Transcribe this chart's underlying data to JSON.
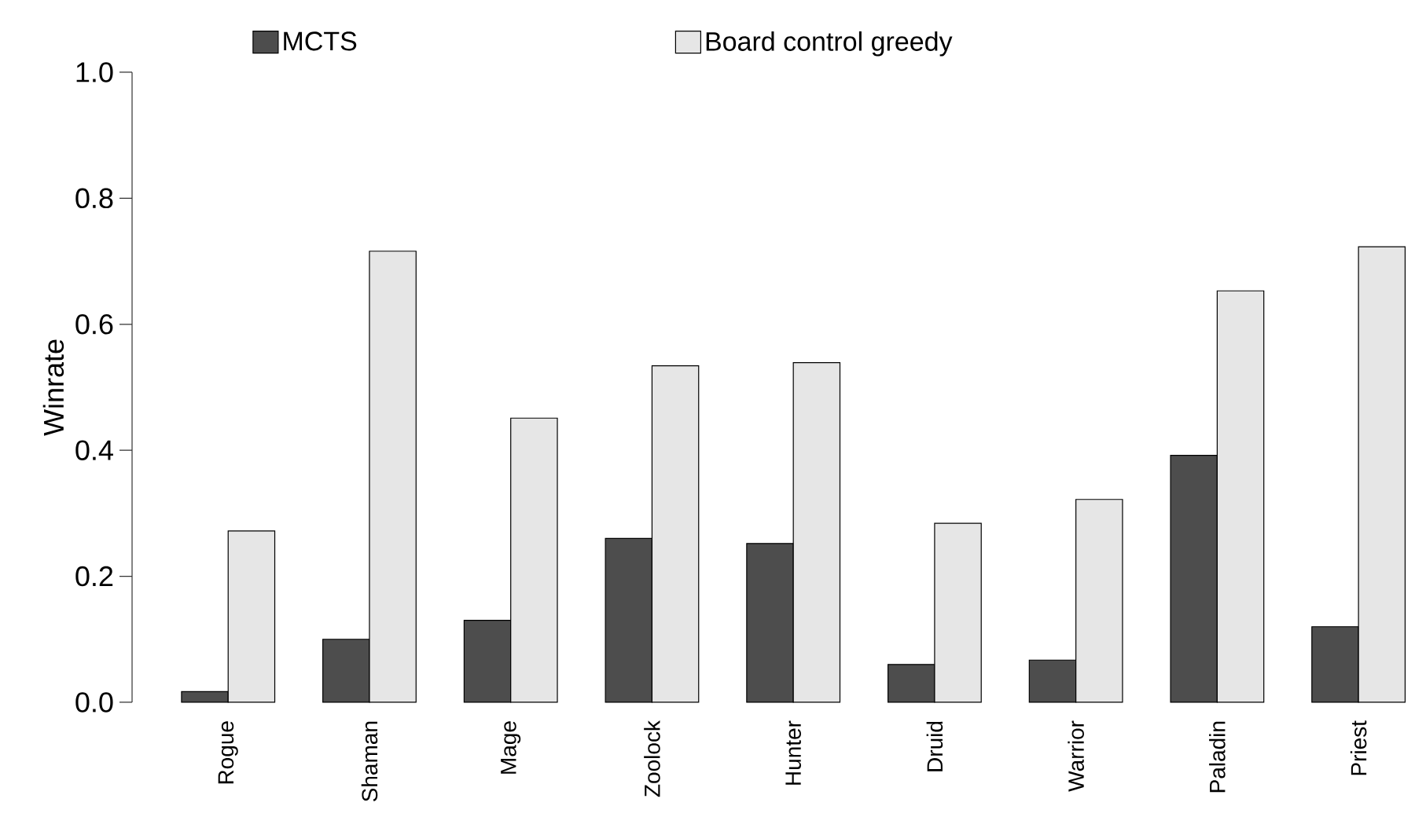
{
  "chart_data": {
    "type": "bar",
    "ylabel": "Winrate",
    "categories": [
      "Rogue",
      "Shaman",
      "Mage",
      "Zoolock",
      "Hunter",
      "Druid",
      "Warrior",
      "Paladin",
      "Priest"
    ],
    "series": [
      {
        "name": "MCTS",
        "color": "#4d4d4d",
        "values": [
          0.017,
          0.1,
          0.13,
          0.26,
          0.252,
          0.06,
          0.067,
          0.392,
          0.12
        ]
      },
      {
        "name": "Board control greedy",
        "color": "#e6e6e6",
        "values": [
          0.272,
          0.716,
          0.451,
          0.534,
          0.539,
          0.284,
          0.322,
          0.653,
          0.723
        ]
      }
    ],
    "ylim": [
      0,
      1
    ],
    "yticks": [
      {
        "value": 0,
        "label": "0.0"
      },
      {
        "value": 0.2,
        "label": "0.2"
      },
      {
        "value": 0.4,
        "label": "0.4"
      },
      {
        "value": 0.6,
        "label": "0.6"
      },
      {
        "value": 0.8,
        "label": "0.8"
      },
      {
        "value": 1,
        "label": "1.0"
      }
    ],
    "legend": "top",
    "grid": false
  }
}
